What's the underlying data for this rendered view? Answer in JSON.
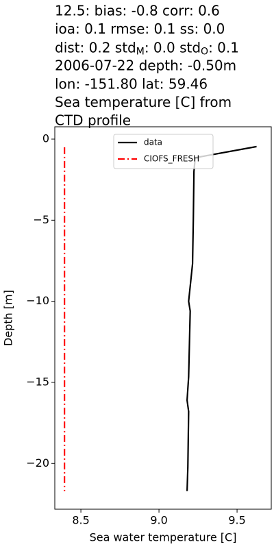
{
  "chart_data": {
    "type": "line",
    "title": [
      "12.5: bias: -0.8  corr: 0.6",
      "ioa: 0.1  rmse: 0.1  ss: 0.0",
      [
        "dist: 0.2  std",
        "M",
        ": 0.0  std",
        "O",
        ": 0.1"
      ],
      "2006-07-22 depth: -0.50m",
      "lon: -151.80 lat: 59.46",
      "Sea temperature [C] from",
      "CTD profile"
    ],
    "xlabel": "Sea water temperature [C]",
    "ylabel": "Depth [m]",
    "xlim": [
      8.333,
      9.719
    ],
    "ylim": [
      -22.82,
      0.76
    ],
    "xticks": [
      8.5,
      {
        "value": 9,
        "label": "9.0"
      },
      9.5
    ],
    "yticks": [
      0,
      {
        "value": -5,
        "label": "−5"
      },
      {
        "value": -10,
        "label": "−10"
      },
      {
        "value": -15,
        "label": "−15"
      },
      {
        "value": -20,
        "label": "−20"
      }
    ],
    "legend": "upper center",
    "series": [
      {
        "name": "data",
        "color": "#000000",
        "dash": "solid",
        "x": [
          9.625,
          9.232,
          9.224,
          9.22,
          9.215,
          9.19,
          9.2,
          9.19,
          9.18,
          9.19,
          9.185,
          9.18
        ],
        "y": [
          -0.46,
          -1.15,
          -2.0,
          -4.94,
          -7.69,
          -10.0,
          -10.6,
          -14.65,
          -16.1,
          -16.8,
          -20.2,
          -21.7
        ]
      },
      {
        "name": "CIOFS_FRESH",
        "color": "#ff0000",
        "dash": "dashdot",
        "x": [
          8.395,
          8.395
        ],
        "y": [
          -0.5,
          -21.7
        ]
      }
    ]
  }
}
